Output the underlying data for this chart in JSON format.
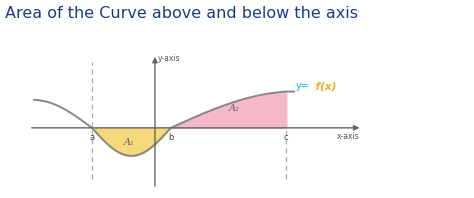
{
  "title": "Area of the Curve above and below the axis",
  "title_fontsize": 11.5,
  "title_color": "#1a3a8c",
  "bg_color": "#ffffff",
  "curve_color": "#888888",
  "fill_below_color": "#f5d97a",
  "fill_above_color": "#f5b8c8",
  "a_x": -1.2,
  "b_x": 0.3,
  "c_x": 2.5,
  "label_a": "a",
  "label_b": "b",
  "label_c": "c",
  "label_A1": "A₁",
  "label_A2": "A₂",
  "label_y_axis": "y-axis",
  "label_x_axis": "x-axis",
  "label_y_eq": "y=",
  "label_fx": " f(x)",
  "y_eq_color": "#00bcd4",
  "func_label_color": "#f5a623",
  "axis_color": "#666666",
  "dashed_color": "#aaaaaa",
  "xlim": [
    -2.5,
    4.0
  ],
  "ylim": [
    -1.3,
    1.5
  ]
}
